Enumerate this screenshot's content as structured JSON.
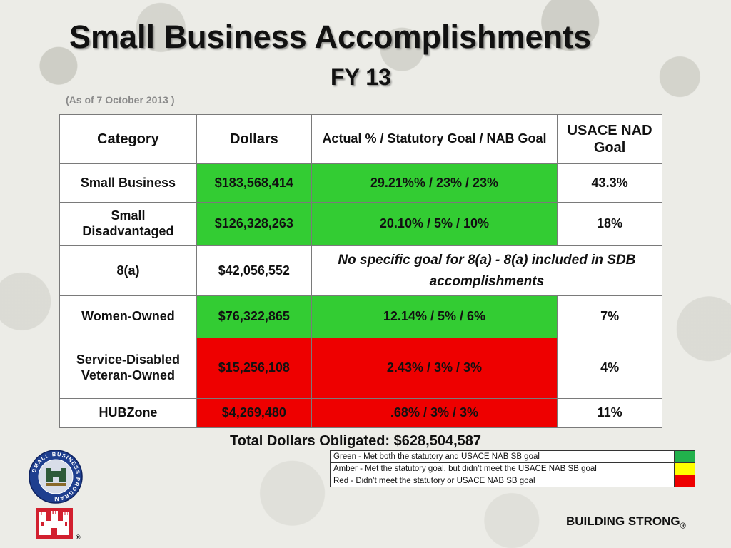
{
  "title": "Small Business Accomplishments",
  "subtitle": "FY 13",
  "as_of": "(As of 7 October 2013 )",
  "table": {
    "headers": [
      "Category",
      "Dollars",
      "Actual % / Statutory Goal / NAB Goal",
      "USACE NAD Goal"
    ],
    "rows": [
      {
        "category": "Small Business",
        "dollars": "$183,568,414",
        "actual": "29.21%% / 23% / 23%",
        "nad_goal": "43.3%",
        "status": "green"
      },
      {
        "category": "Small Disadvantaged",
        "dollars": "$126,328,263",
        "actual": "20.10% / 5% / 10%",
        "nad_goal": "18%",
        "status": "green"
      },
      {
        "category": "8(a)",
        "dollars": "$42,056,552",
        "note": "No specific goal for 8(a)  - 8(a) included in SDB accomplishments",
        "status": "none"
      },
      {
        "category": "Women-Owned",
        "dollars": "$76,322,865",
        "actual": "12.14% / 5% / 6%",
        "nad_goal": "7%",
        "status": "green"
      },
      {
        "category": "Service-Disabled Veteran-Owned",
        "dollars": "$15,256,108",
        "actual": "2.43% / 3% / 3%",
        "nad_goal": "4%",
        "status": "red"
      },
      {
        "category": "HUBZone",
        "dollars": "$4,269,480",
        "actual": ".68% / 3% / 3%",
        "nad_goal": "11%",
        "status": "red"
      }
    ]
  },
  "total": "Total Dollars Obligated:  $628,504,587",
  "legend": [
    {
      "text": "Green - Met both the statutory and USACE NAB SB goal",
      "color": "#22b14c"
    },
    {
      "text": "Amber - Met the statutory goal, but didn’t meet the USACE NAB SB goal",
      "color": "#ffff00"
    },
    {
      "text": "Red - Didn’t meet the statutory or USACE NAB SB goal",
      "color": "#ee0000"
    }
  ],
  "seal_text": "SMALL BUSINESS PROGRAM",
  "footer": {
    "text": "BUILDING STRONG",
    "reg_mark": "®",
    "castle_reg_mark": "®"
  },
  "colors": {
    "met": "#33cc33",
    "not_met": "#ee0000"
  }
}
